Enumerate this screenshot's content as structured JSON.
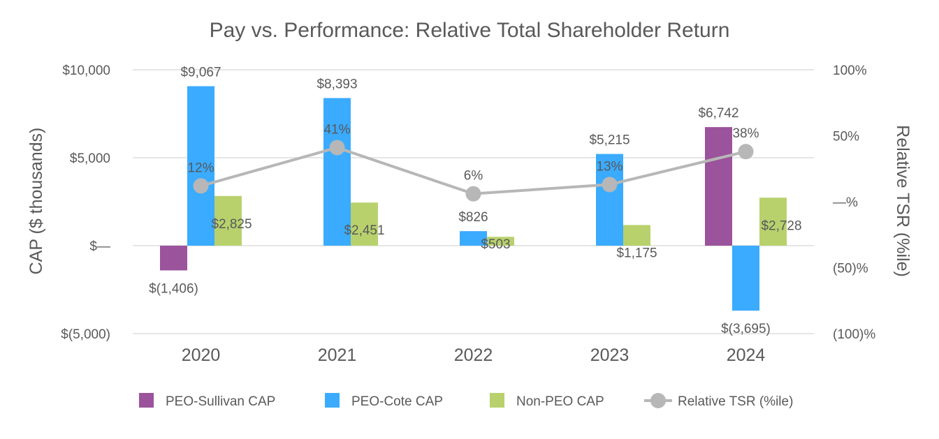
{
  "chart_data": {
    "type": "bar",
    "title": "Pay vs. Performance: Relative Total Shareholder Return",
    "categories": [
      "2020",
      "2021",
      "2022",
      "2023",
      "2024"
    ],
    "ylabel": "CAP ($ thousands)",
    "y2label": "Relative TSR (%ile)",
    "ylim": [
      -5000,
      10000
    ],
    "y2lim": [
      -100,
      100
    ],
    "yticks": [
      {
        "value": 10000,
        "label": "$10,000"
      },
      {
        "value": 5000,
        "label": "$5,000"
      },
      {
        "value": 0,
        "label": "$—"
      },
      {
        "value": -5000,
        "label": "$(5,000)"
      }
    ],
    "y2ticks": [
      {
        "value": 100,
        "label": "100%"
      },
      {
        "value": 50,
        "label": "50%"
      },
      {
        "value": 0,
        "label": "—%"
      },
      {
        "value": -50,
        "label": "(50)%"
      },
      {
        "value": -100,
        "label": "(100)%"
      }
    ],
    "series": [
      {
        "name": "PEO-Sullivan CAP",
        "color": "#9b539c",
        "values": [
          -1406,
          null,
          null,
          null,
          6742
        ],
        "labels": [
          "$(1,406)",
          "",
          "",
          "",
          "$6,742"
        ]
      },
      {
        "name": "PEO-Cote CAP",
        "color": "#3aabff",
        "values": [
          9067,
          8393,
          826,
          5215,
          -3695
        ],
        "labels": [
          "$9,067",
          "$8,393",
          "$826",
          "$5,215",
          "$(3,695)"
        ]
      },
      {
        "name": "Non-PEO CAP",
        "color": "#b8d16d",
        "values": [
          2825,
          2451,
          503,
          1175,
          2728
        ],
        "labels": [
          "$2,825",
          "$2,451",
          "$503",
          "$1,175",
          "$2,728"
        ]
      }
    ],
    "line_series": {
      "name": "Relative TSR (%ile)",
      "color": "#b7b7b7",
      "axis": "right",
      "values": [
        12,
        41,
        6,
        13,
        38
      ],
      "labels": [
        "12%",
        "41%",
        "6%",
        "13%",
        "38%"
      ]
    },
    "legend": "bottom",
    "grid": true
  }
}
